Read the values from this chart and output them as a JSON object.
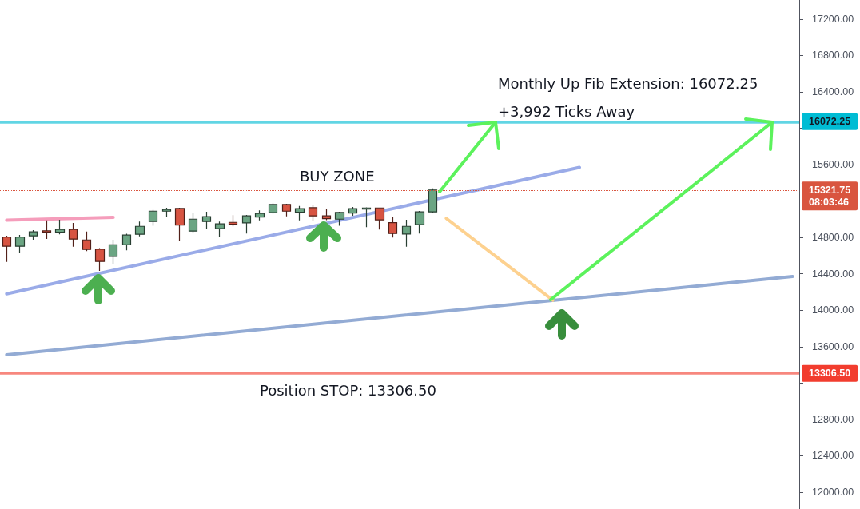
{
  "chart_data": {
    "type": "candlestick",
    "categories": [
      null,
      null,
      null,
      null,
      null,
      null,
      null,
      null,
      null,
      null,
      null,
      null,
      null,
      null,
      null,
      null,
      null,
      null,
      null,
      null,
      null,
      null,
      null,
      null,
      null,
      null,
      null,
      null,
      null,
      null,
      null,
      null,
      null,
      null,
      null,
      null,
      null,
      null,
      null,
      null,
      null,
      null,
      null,
      null,
      null,
      null,
      null,
      null,
      null,
      null,
      null,
      null,
      null,
      null,
      null,
      null,
      null,
      null,
      null,
      null
    ],
    "ohlc": [
      [
        14805,
        14820,
        14532,
        14703
      ],
      [
        14703,
        14828,
        14629,
        14805
      ],
      [
        14817,
        14881,
        14776,
        14861
      ],
      [
        14872,
        14987,
        14784,
        14857
      ],
      [
        14857,
        14995,
        14835,
        14887
      ],
      [
        14887,
        14960,
        14699,
        14782
      ],
      [
        14773,
        14864,
        14650,
        14668
      ],
      [
        14670,
        14682,
        14433,
        14536
      ],
      [
        14591,
        14776,
        14506,
        14720
      ],
      [
        14720,
        14840,
        14659,
        14826
      ],
      [
        14835,
        14975,
        14813,
        14922
      ],
      [
        14975,
        15103,
        14928,
        15089
      ],
      [
        15089,
        15127,
        15024,
        15107
      ],
      [
        15118,
        15127,
        14761,
        14936
      ],
      [
        14870,
        15074,
        14857,
        15001
      ],
      [
        14975,
        15083,
        14893,
        15028
      ],
      [
        14896,
        14975,
        14805,
        14949
      ],
      [
        14966,
        15045,
        14922,
        14945
      ],
      [
        14960,
        15048,
        14843,
        15037
      ],
      [
        15024,
        15098,
        14987,
        15063
      ],
      [
        15072,
        15174,
        15063,
        15162
      ],
      [
        15162,
        15171,
        15033,
        15089
      ],
      [
        15077,
        15145,
        14989,
        15116
      ],
      [
        15127,
        15153,
        14980,
        15037
      ],
      [
        15037,
        15118,
        14990,
        15007
      ],
      [
        15001,
        15083,
        14928,
        15074
      ],
      [
        15068,
        15136,
        15039,
        15116
      ],
      [
        15112,
        15130,
        14914,
        15124
      ],
      [
        15124,
        15124,
        14887,
        14993
      ],
      [
        14963,
        15030,
        14799,
        14843
      ],
      [
        14837,
        14995,
        14699,
        14922
      ],
      [
        14940,
        15092,
        14843,
        15081
      ],
      [
        15081,
        15340,
        15070,
        15321.75
      ],
      null,
      null,
      null,
      null,
      null,
      null,
      null,
      null,
      null,
      null,
      null,
      null,
      null,
      null,
      null,
      null,
      null,
      null,
      null,
      null,
      null,
      null,
      null,
      null,
      null,
      null,
      null
    ],
    "colors": [
      "#d75442",
      "#6ba583",
      "#6ba583",
      "#d75442",
      "#6ba583",
      "#d75442",
      "#d75442",
      "#d75442",
      "#6ba583",
      "#6ba583",
      "#6ba583",
      "#6ba583",
      "#6ba583",
      "#d75442",
      "#6ba583",
      "#6ba583",
      "#6ba583",
      "#d75442",
      "#6ba583",
      "#6ba583",
      "#6ba583",
      "#d75442",
      "#6ba583",
      "#d75442",
      "#d75442",
      "#6ba583",
      "#6ba583",
      "#6ba583",
      "#d75442",
      "#d75442",
      "#6ba583",
      "#6ba583",
      "#6ba583",
      null,
      null,
      null,
      null,
      null,
      null,
      null,
      null,
      null,
      null,
      null,
      null,
      null,
      null,
      null,
      null,
      null,
      null,
      null,
      null,
      null,
      null,
      null,
      null,
      null,
      null,
      null
    ],
    "series": [
      {
        "type": "line",
        "color": "#9aabe8",
        "values": [
          14180,
          null,
          null,
          null,
          null,
          null,
          null,
          null,
          null,
          null,
          null,
          null,
          null,
          null,
          null,
          null,
          null,
          null,
          null,
          null,
          null,
          null,
          null,
          null,
          null,
          null,
          null,
          null,
          null,
          null,
          null,
          null,
          null,
          null,
          null,
          null,
          null,
          null,
          null,
          null,
          null,
          null,
          null,
          15570,
          null,
          null,
          null,
          null,
          null,
          null,
          null,
          null,
          null,
          null,
          null,
          null,
          null,
          null,
          null,
          null
        ]
      },
      {
        "type": "line",
        "color": "#93abd4",
        "values": [
          13510,
          null,
          null,
          null,
          null,
          null,
          null,
          null,
          null,
          null,
          null,
          null,
          null,
          null,
          null,
          null,
          null,
          null,
          null,
          null,
          null,
          null,
          null,
          null,
          null,
          null,
          null,
          null,
          null,
          null,
          null,
          null,
          null,
          null,
          null,
          null,
          null,
          null,
          null,
          null,
          null,
          null,
          null,
          null,
          null,
          null,
          null,
          null,
          null,
          null,
          null,
          null,
          null,
          null,
          null,
          null,
          null,
          null,
          null,
          14370
        ]
      },
      {
        "type": "line",
        "color": "#f59dbb",
        "values": [
          14990,
          null,
          null,
          null,
          null,
          null,
          null,
          null,
          15020,
          null,
          null,
          null,
          null,
          null,
          null,
          null,
          null,
          null,
          null,
          null,
          null,
          null,
          null,
          null,
          null,
          null,
          null,
          null,
          null,
          null,
          null,
          null,
          null,
          null,
          null,
          null,
          null,
          null,
          null,
          null,
          null,
          null,
          null,
          null,
          null,
          null,
          null,
          null,
          null,
          null,
          null,
          null,
          null,
          null,
          null,
          null,
          null,
          null,
          null,
          null
        ]
      },
      {
        "type": "line",
        "color": "#fdd18f",
        "values": [
          null,
          null,
          null,
          null,
          null,
          null,
          null,
          null,
          null,
          null,
          null,
          null,
          null,
          null,
          null,
          null,
          null,
          null,
          null,
          null,
          null,
          null,
          null,
          null,
          null,
          null,
          null,
          null,
          null,
          null,
          null,
          null,
          null,
          15010,
          null,
          null,
          null,
          null,
          null,
          null,
          null,
          14110,
          null,
          null,
          null,
          null,
          null,
          null,
          null,
          null,
          null,
          null,
          null,
          null,
          null,
          null,
          null,
          null,
          null,
          null
        ]
      }
    ],
    "ylim": [
      11815,
      17410
    ],
    "yticks": [
      {
        "value": 12000,
        "label": "12000.00"
      },
      {
        "value": 12400,
        "label": "12400.00"
      },
      {
        "value": 12800,
        "label": "12800.00"
      },
      {
        "value": 13200,
        "label": null
      },
      {
        "value": 13600,
        "label": "13600.00"
      },
      {
        "value": 14000,
        "label": "14000.00"
      },
      {
        "value": 14400,
        "label": "14400.00"
      },
      {
        "value": 14800,
        "label": "14800.00"
      },
      {
        "value": 15200,
        "label": null
      },
      {
        "value": 15600,
        "label": "15600.00"
      },
      {
        "value": 16000,
        "label": null
      },
      {
        "value": 16400,
        "label": "16400.00"
      },
      {
        "value": 16800,
        "label": "16800.00"
      },
      {
        "value": 17200,
        "label": "17200.00"
      }
    ],
    "ref_lines": [
      {
        "axis": "y",
        "value": 16072.25,
        "label": "16072.25",
        "color": "#00bcd4",
        "line_style": "solid"
      },
      {
        "axis": "y",
        "value": 15321.75,
        "label": "15321.75\n08:03:46",
        "color": "#d9553f",
        "line_style": "dotted"
      },
      {
        "axis": "y",
        "value": 13306.5,
        "label": "13306.50",
        "color": "#f23d2e",
        "line_style": "solid"
      }
    ],
    "annotations": [
      "Monthly Up Fib Extension: 16072.25",
      "+3,992 Ticks Away",
      "BUY ZONE",
      "Position STOP: 13306.50"
    ],
    "marker": "none",
    "tick_labels": "y"
  }
}
